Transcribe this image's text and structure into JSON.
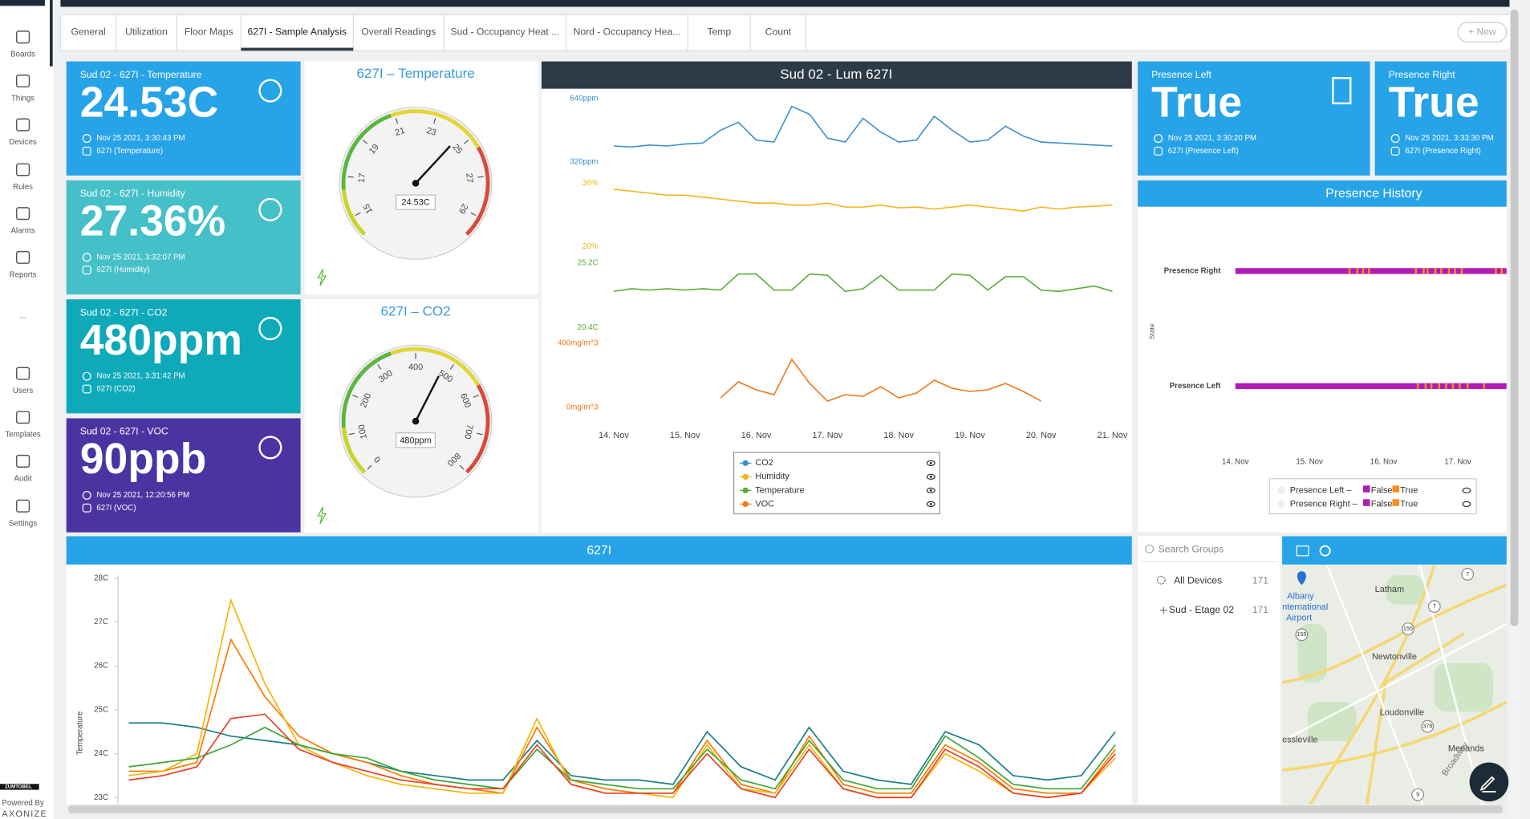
{
  "sidebar": {
    "items": [
      "Boards",
      "Things",
      "Devices",
      "Rules",
      "Alarms",
      "Reports",
      "...",
      "Users",
      "Templates",
      "Audit",
      "Settings"
    ],
    "brand_top": "ZUMTOBEL",
    "powered_by": "Powered By",
    "brand": "AXONIZE"
  },
  "tabs": {
    "items": [
      "General",
      "Utilization",
      "Floor Maps",
      "627I - Sample Analysis",
      "Overall Readings",
      "Sud - Occupancy Heat ...",
      "Nord - Occupancy Hea...",
      "Temp",
      "Count"
    ],
    "active": 3,
    "new_button": "+ New"
  },
  "tiles": [
    {
      "title": "Sud 02 - 627I - Temperature",
      "value": "24.53C",
      "time": "Nov 25 2021, 3:30:43 PM",
      "device": "627I (Temperature)",
      "color": "#27a3e8"
    },
    {
      "title": "Sud 02 - 627I - Humidity",
      "value": "27.36%",
      "time": "Nov 25 2021, 3:32:07 PM",
      "device": "627I (Humidity)",
      "color": "#45c0c8"
    },
    {
      "title": "Sud 02 - 627I - CO2",
      "value": "480ppm",
      "time": "Nov 25 2021, 3:31:42 PM",
      "device": "627I (CO2)",
      "color": "#0eaab9"
    },
    {
      "title": "Sud 02 - 627I - VOC",
      "value": "90ppb",
      "time": "Nov 25 2021, 12:20:56 PM",
      "device": "627I (VOC)",
      "color": "#4a34a1"
    }
  ],
  "presence_tiles": [
    {
      "title": "Presence Left",
      "value": "True",
      "time": "Nov 25 2021, 3:30:20 PM",
      "device": "627I (Presence Left)",
      "color": "#27a3e8"
    },
    {
      "title": "Presence Right",
      "value": "True",
      "time": "Nov 25 2021, 3:33:30 PM",
      "device": "627I (Presence Right)",
      "color": "#27a3e8"
    }
  ],
  "gauges": [
    {
      "type": "gauge",
      "title": "627I – Temperature",
      "value": 24.53,
      "value_label": "24.53C",
      "range": [
        14,
        30
      ],
      "ticks": [
        15,
        17,
        19,
        21,
        23,
        25,
        27,
        29
      ]
    },
    {
      "type": "gauge",
      "title": "627I – CO2",
      "value": 480,
      "value_label": "480ppm",
      "range": [
        0,
        800
      ],
      "ticks": [
        0,
        100,
        200,
        300,
        400,
        500,
        600,
        700,
        800
      ]
    }
  ],
  "lum_chart": {
    "type": "line",
    "title": "Sud 02 - Lum 627I",
    "xticks": [
      "14. Nov",
      "15. Nov",
      "16. Nov",
      "17. Nov",
      "18. Nov",
      "19. Nov",
      "20. Nov",
      "21. Nov"
    ],
    "series": [
      {
        "name": "CO2",
        "color": "#3a8fd0",
        "ylim": [
          320,
          640
        ],
        "yticks": [
          {
            "value": 640,
            "label": "640ppm"
          },
          {
            "value": 320,
            "label": "320ppm"
          }
        ],
        "values": [
          400,
          395,
          405,
          400,
          410,
          415,
          480,
          520,
          430,
          420,
          600,
          560,
          440,
          420,
          540,
          470,
          420,
          430,
          550,
          480,
          420,
          430,
          500,
          450,
          420,
          415,
          410,
          405,
          400
        ]
      },
      {
        "name": "Humidity",
        "color": "#f5b21b",
        "ylim": [
          20,
          36
        ],
        "yticks": [
          {
            "value": 36,
            "label": "36%"
          },
          {
            "value": 20,
            "label": "20%"
          }
        ],
        "values": [
          34.5,
          34,
          33.5,
          33,
          33,
          32.5,
          32,
          31.5,
          31,
          31,
          30.5,
          30.5,
          31,
          30,
          30,
          30.5,
          29.8,
          30,
          29.5,
          30,
          30.5,
          30,
          29.5,
          29,
          30,
          29.5,
          30,
          30.2,
          30.5
        ]
      },
      {
        "name": "Temperature",
        "color": "#5aab32",
        "ylim": [
          20.4,
          25.2
        ],
        "yticks": [
          {
            "value": 25.2,
            "label": "25.2C"
          },
          {
            "value": 20.4,
            "label": "20.4C"
          }
        ],
        "values": [
          23.1,
          23.3,
          23.2,
          23.3,
          23.2,
          23.3,
          23.2,
          24.4,
          24.4,
          23.2,
          23.2,
          24.4,
          24.3,
          23.1,
          23.3,
          24.3,
          23.2,
          23.2,
          23.2,
          24.4,
          24.3,
          23.2,
          24.2,
          24.2,
          23.2,
          23.1,
          23.3,
          23.5,
          23.1
        ]
      },
      {
        "name": "VOC",
        "color": "#f07818",
        "ylim": [
          0,
          400
        ],
        "yticks": [
          {
            "value": 400,
            "label": "400mg/m^3"
          },
          {
            "value": 0,
            "label": "0mg/m^3"
          }
        ],
        "values": [
          null,
          null,
          null,
          null,
          null,
          null,
          60,
          160,
          110,
          80,
          300,
          150,
          40,
          80,
          70,
          130,
          60,
          90,
          170,
          120,
          100,
          110,
          150,
          100,
          40,
          null,
          null,
          null,
          null
        ]
      }
    ]
  },
  "presence_history": {
    "title": "Presence History",
    "ylabel": "State",
    "rows": [
      "Presence Right",
      "Presence Left"
    ],
    "xticks": [
      "14. Nov",
      "15. Nov",
      "16. Nov",
      "17. Nov"
    ],
    "legend": [
      {
        "name": "Presence Left –",
        "false": "False",
        "true": "True"
      },
      {
        "name": "Presence Right –",
        "false": "False",
        "true": "True"
      }
    ],
    "false_color": "#b01cb8",
    "true_color": "#ff8a1c"
  },
  "bottom_chart": {
    "type": "line",
    "title": "627I",
    "ylabel": "Temperature",
    "ylim": [
      23,
      28
    ],
    "yticks": [
      {
        "value": 23,
        "label": "23C"
      },
      {
        "value": 24,
        "label": "24C"
      },
      {
        "value": 25,
        "label": "25C"
      },
      {
        "value": 26,
        "label": "26C"
      },
      {
        "value": 27,
        "label": "27C"
      },
      {
        "value": 28,
        "label": "28C"
      }
    ],
    "series": [
      {
        "color": "#1b7f86",
        "values": [
          24.7,
          24.7,
          24.6,
          24.4,
          24.3,
          24.2,
          24.0,
          23.8,
          23.6,
          23.5,
          23.4,
          23.4,
          24.3,
          23.5,
          23.4,
          23.4,
          23.3,
          24.5,
          23.7,
          23.4,
          24.6,
          23.6,
          23.4,
          23.3,
          24.5,
          24.2,
          23.5,
          23.4,
          23.5,
          24.5
        ]
      },
      {
        "color": "#ff7a00",
        "values": [
          23.6,
          23.6,
          23.8,
          26.6,
          25.3,
          24.4,
          24.0,
          23.8,
          23.5,
          23.3,
          23.2,
          23.1,
          24.6,
          23.4,
          23.2,
          23.1,
          23.1,
          24.3,
          23.3,
          23.1,
          24.4,
          23.3,
          23.1,
          23.1,
          24.2,
          23.8,
          23.2,
          23.1,
          23.1,
          24.1
        ]
      },
      {
        "color": "#f2b705",
        "values": [
          23.5,
          23.6,
          24.0,
          27.5,
          25.6,
          24.2,
          23.8,
          23.5,
          23.3,
          23.2,
          23.1,
          23.1,
          24.8,
          23.3,
          23.1,
          23.1,
          23.0,
          24.2,
          23.2,
          23.1,
          24.2,
          23.2,
          23.0,
          23.0,
          24.0,
          23.6,
          23.1,
          23.0,
          23.1,
          23.9
        ]
      },
      {
        "color": "#3fa535",
        "values": [
          23.7,
          23.8,
          23.9,
          24.2,
          24.6,
          24.2,
          24.0,
          23.9,
          23.6,
          23.4,
          23.3,
          23.2,
          24.1,
          23.4,
          23.3,
          23.2,
          23.2,
          24.1,
          23.4,
          23.2,
          24.3,
          23.4,
          23.2,
          23.2,
          24.4,
          23.9,
          23.3,
          23.2,
          23.2,
          24.2
        ]
      },
      {
        "color": "#e8412c",
        "values": [
          23.4,
          23.5,
          23.7,
          24.8,
          24.9,
          24.1,
          23.8,
          23.6,
          23.4,
          23.3,
          23.2,
          23.2,
          24.2,
          23.3,
          23.1,
          23.1,
          23.1,
          24.0,
          23.2,
          23.0,
          24.1,
          23.2,
          23.0,
          23.0,
          24.1,
          23.7,
          23.1,
          23.0,
          23.1,
          24.0
        ]
      }
    ]
  },
  "groups": {
    "search_placeholder": "Search Groups",
    "items": [
      {
        "name": "All Devices",
        "count": "171"
      },
      {
        "name": "Sud - Etage 02",
        "count": "171"
      }
    ]
  },
  "map": {
    "places": [
      "Albany",
      "nternational",
      "Airport",
      "Latham",
      "Newtonville",
      "Loudonville",
      "essleville",
      "Menands",
      "Broadway"
    ],
    "shields": [
      "7",
      "7",
      "155",
      "155",
      "378",
      "9"
    ]
  }
}
